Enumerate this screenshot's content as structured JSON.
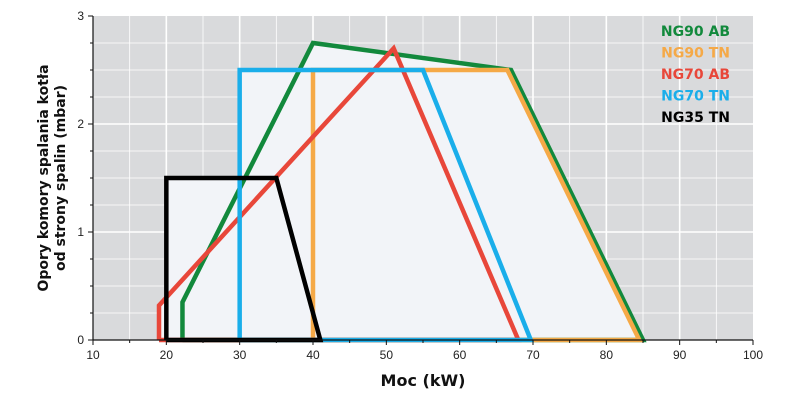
{
  "chart_data": {
    "type": "line",
    "xlabel": "Moc (kW)",
    "ylabel_lines": [
      "Opory komory spalania kotła",
      "od strony spalin (mbar)"
    ],
    "xlim": [
      10,
      100
    ],
    "ylim": [
      0,
      3
    ],
    "x_ticks": [
      "10",
      "20",
      "30",
      "40",
      "50",
      "60",
      "70",
      "80",
      "90",
      "100"
    ],
    "y_ticks": [
      "0",
      "1",
      "2",
      "3"
    ],
    "grid": true,
    "plot_background": "#d9dadc",
    "area_fill": "#f2f4f8",
    "legend_position": "top-right",
    "series": [
      {
        "name": "NG90 AB",
        "color": "#12893c",
        "points": [
          [
            22.2,
            0
          ],
          [
            22.2,
            0.35
          ],
          [
            40,
            2.75
          ],
          [
            67,
            2.5
          ],
          [
            85,
            0
          ],
          [
            22.2,
            0
          ]
        ]
      },
      {
        "name": "NG90 TN",
        "color": "#f5a947",
        "points": [
          [
            40,
            0
          ],
          [
            40,
            2.5
          ],
          [
            66.5,
            2.5
          ],
          [
            84.5,
            0
          ],
          [
            40,
            0
          ]
        ]
      },
      {
        "name": "NG70 AB",
        "color": "#e8473a",
        "points": [
          [
            19,
            0
          ],
          [
            19,
            0.32
          ],
          [
            51,
            2.7
          ],
          [
            68,
            0
          ],
          [
            19,
            0
          ]
        ]
      },
      {
        "name": "NG70 TN",
        "color": "#1aaeea",
        "points": [
          [
            30,
            0
          ],
          [
            30,
            2.5
          ],
          [
            55,
            2.5
          ],
          [
            69.7,
            0
          ],
          [
            30,
            0
          ]
        ]
      },
      {
        "name": "NG35 TN",
        "color": "#000000",
        "points": [
          [
            20,
            0
          ],
          [
            20,
            1.5
          ],
          [
            35,
            1.5
          ],
          [
            41,
            0
          ],
          [
            20,
            0
          ]
        ]
      }
    ]
  }
}
